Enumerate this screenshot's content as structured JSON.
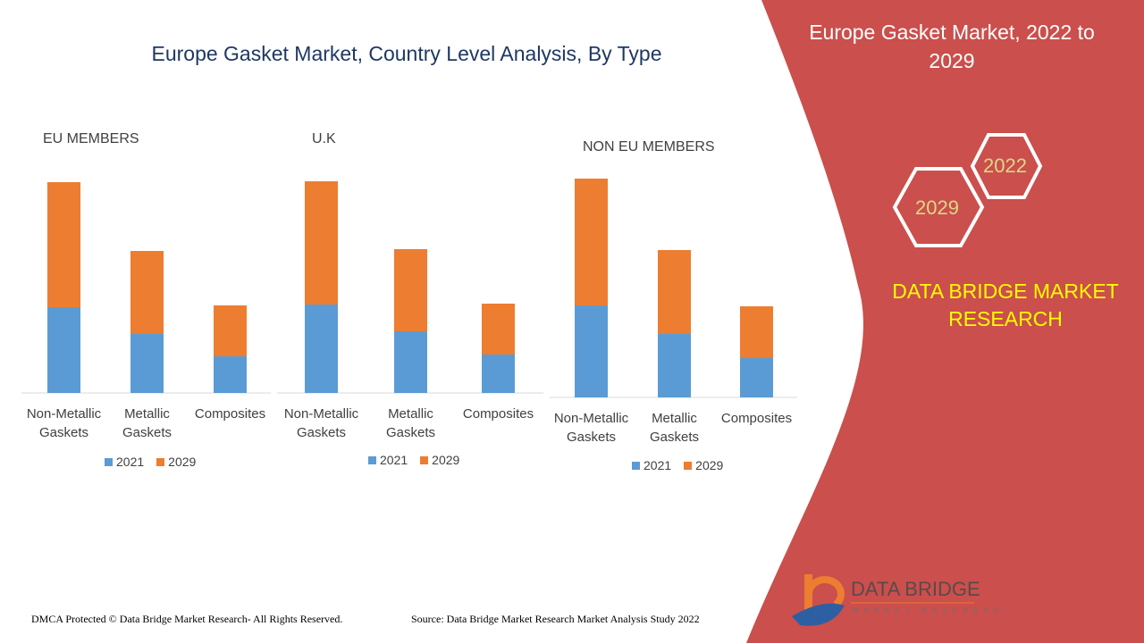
{
  "title": "Europe Gasket Market, Country Level Analysis, By Type",
  "side_panel": {
    "title": "Europe Gasket Market, 2022 to 2029",
    "hex_years": [
      "2022",
      "2029"
    ],
    "brand": "DATA BRIDGE MARKET RESEARCH",
    "logo_text": "DATA BRIDGE",
    "logo_sub": "MARKET RESEARCH"
  },
  "footer": {
    "copyright": "DMCA Protected © Data Bridge Market Research- All Rights Reserved.",
    "source": "Source: Data Bridge Market Research Market Analysis Study 2022"
  },
  "colors": {
    "s2021": "#5b9bd5",
    "s2029": "#ed7d31",
    "panel": "#cb4f4c"
  },
  "chart_data": [
    {
      "type": "bar",
      "stacked": true,
      "title": "EU MEMBERS",
      "categories": [
        "Non-Metallic Gaskets",
        "Metallic Gaskets",
        "Composites"
      ],
      "series": [
        {
          "name": "2021",
          "values": [
            96,
            66,
            41
          ]
        },
        {
          "name": "2029",
          "values": [
            140,
            93,
            57
          ]
        }
      ],
      "ylim": [
        0,
        250
      ],
      "legend": "bottom",
      "grid": false,
      "units": "relative (no axis shown)"
    },
    {
      "type": "bar",
      "stacked": true,
      "title": "U.K",
      "categories": [
        "Non-Metallic Gaskets",
        "Metallic Gaskets",
        "Composites"
      ],
      "series": [
        {
          "name": "2021",
          "values": [
            99,
            69,
            43
          ]
        },
        {
          "name": "2029",
          "values": [
            138,
            92,
            57
          ]
        }
      ],
      "ylim": [
        0,
        250
      ],
      "legend": "bottom",
      "grid": false,
      "units": "relative (no axis shown)"
    },
    {
      "type": "bar",
      "stacked": true,
      "title": "NON EU MEMBERS",
      "categories": [
        "Non-Metallic Gaskets",
        "Metallic Gaskets",
        "Composites"
      ],
      "series": [
        {
          "name": "2021",
          "values": [
            103,
            71,
            44
          ]
        },
        {
          "name": "2029",
          "values": [
            142,
            94,
            58
          ]
        }
      ],
      "ylim": [
        0,
        250
      ],
      "legend": "bottom",
      "grid": false,
      "units": "relative (no axis shown)"
    }
  ]
}
